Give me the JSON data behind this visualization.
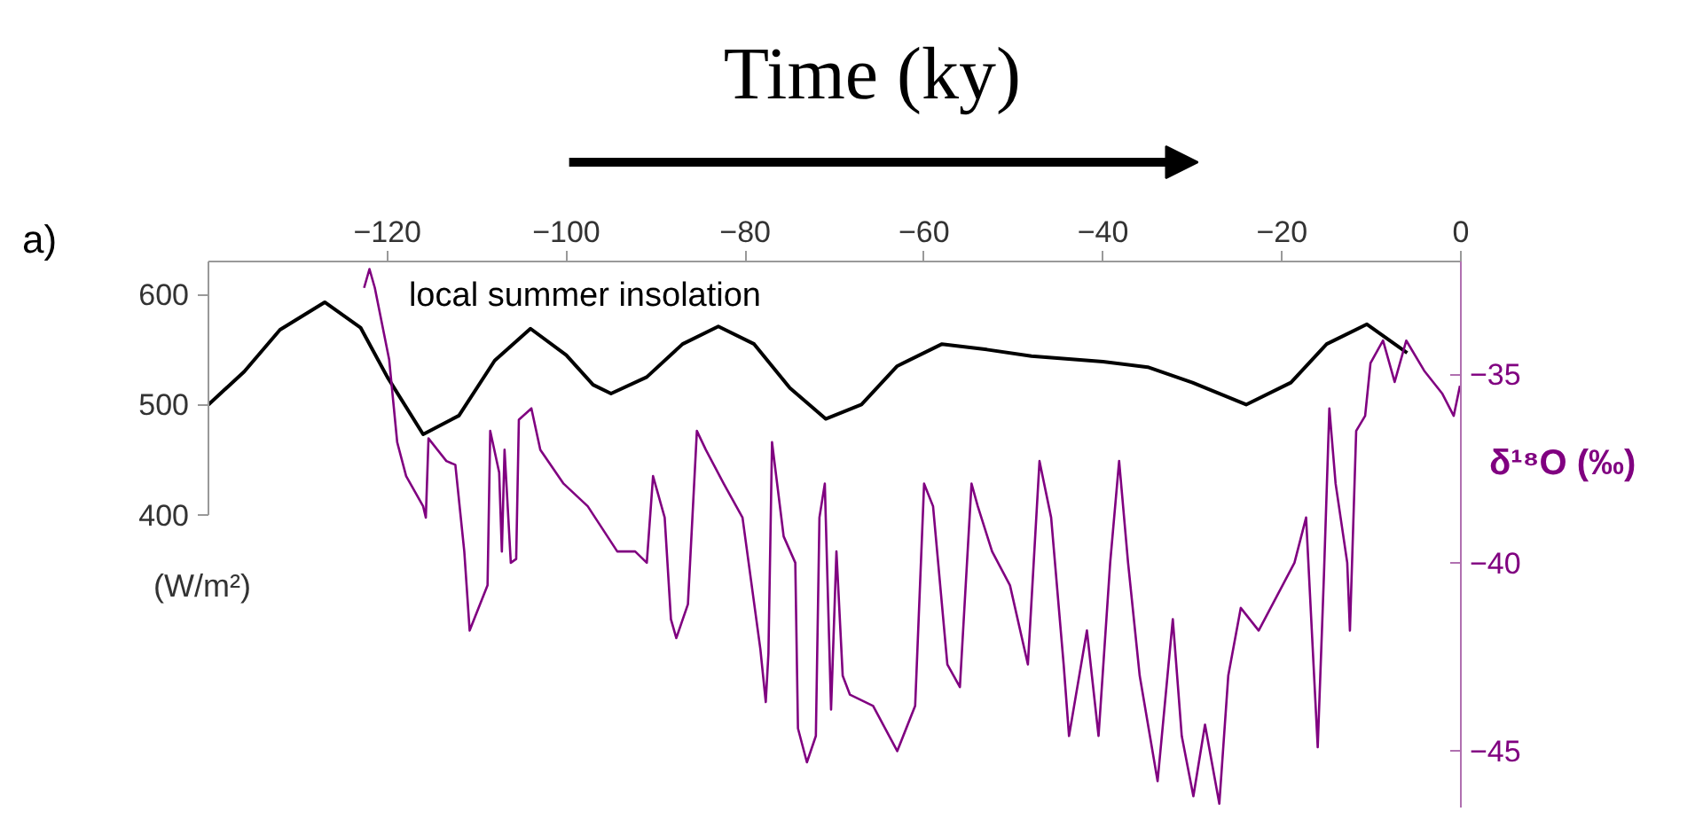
{
  "chart_data": {
    "type": "line",
    "title": "Time (ky)",
    "ylabel": "(W/m²)",
    "y2label": "δ¹⁸O (‰)",
    "annotations": [
      "a)"
    ],
    "xlim": [
      -140,
      0
    ],
    "xticks": [
      -120,
      -100,
      -80,
      -60,
      -40,
      -20,
      0
    ],
    "ylim": [
      134,
      630
    ],
    "yticks": [
      400,
      500,
      600
    ],
    "y2lim": [
      -46.5,
      -32
    ],
    "y2ticks": [
      -35,
      -40,
      -45
    ],
    "legend": false,
    "series": [
      {
        "name": "local summer insolation",
        "color": "#000000",
        "x": [
          -140,
          -136,
          -132,
          -127,
          -123,
          -120,
          -116,
          -112,
          -108,
          -104,
          -100,
          -97,
          -95,
          -91,
          -87,
          -83,
          -79,
          -75,
          -71,
          -67,
          -63,
          -58,
          -53,
          -48,
          -40,
          -35,
          -30,
          -24,
          -19,
          -15,
          -10.5,
          -6
        ],
        "values": [
          500,
          530,
          568,
          593,
          570,
          525,
          473,
          490,
          540,
          569,
          545,
          518,
          510,
          525,
          555,
          571,
          555,
          515,
          487,
          500,
          535,
          555,
          550,
          544,
          539,
          534,
          520,
          500,
          520,
          555,
          573,
          547
        ]
      },
      {
        "color": "#800080",
        "axis": "y2",
        "x": [
          -122.6,
          -122,
          -121.4,
          -119.8,
          -118.9,
          -117.9,
          -116,
          -115.7,
          -115.4,
          -113.4,
          -112.4,
          -111.4,
          -110.8,
          -108.8,
          -108.5,
          -107.5,
          -107.2,
          -106.9,
          -106.2,
          -105.6,
          -105.3,
          -103.9,
          -102.9,
          -100.3,
          -97.6,
          -94.3,
          -92.3,
          -91,
          -90.3,
          -89,
          -88.3,
          -87.7,
          -86.4,
          -85.4,
          -84.4,
          -82.4,
          -80.3,
          -78.3,
          -77.7,
          -77.4,
          -77,
          -75.7,
          -74.4,
          -74.1,
          -73.1,
          -72.1,
          -71.7,
          -71.1,
          -70.4,
          -69.8,
          -69.1,
          -68.3,
          -65.7,
          -63,
          -61,
          -60,
          -59,
          -57.4,
          -56,
          -54.7,
          -54,
          -52.4,
          -50.4,
          -48.4,
          -47.1,
          -45.8,
          -44.4,
          -43.8,
          -41.8,
          -40.5,
          -39.2,
          -38.2,
          -37.2,
          -35.9,
          -33.9,
          -32.2,
          -31.2,
          -29.9,
          -28.6,
          -27,
          -26,
          -24.6,
          -22.6,
          -20.6,
          -18.6,
          -17.3,
          -16,
          -15.3,
          -14.7,
          -14,
          -12.7,
          -12.4,
          -11.7,
          -10.7,
          -10.1,
          -8.7,
          -7.4,
          -6.1,
          -4.1,
          -2.1,
          -0.8,
          -0.1
        ],
        "values": [
          -32.7,
          -32.2,
          -32.7,
          -34.6,
          -36.8,
          -37.7,
          -38.5,
          -38.8,
          -36.7,
          -37.3,
          -37.4,
          -39.7,
          -41.8,
          -40.6,
          -36.5,
          -37.6,
          -39.7,
          -37,
          -40,
          -39.9,
          -36.2,
          -35.9,
          -37,
          -37.9,
          -38.5,
          -39.7,
          -39.7,
          -40,
          -37.7,
          -38.8,
          -41.5,
          -42,
          -41.1,
          -36.5,
          -37,
          -37.9,
          -38.8,
          -42.3,
          -43.7,
          -42.4,
          -36.8,
          -39.3,
          -40,
          -44.4,
          -45.3,
          -44.6,
          -38.8,
          -37.9,
          -43.9,
          -39.7,
          -43,
          -43.5,
          -43.8,
          -45,
          -43.8,
          -37.9,
          -38.5,
          -42.7,
          -43.3,
          -37.9,
          -38.5,
          -39.7,
          -40.6,
          -42.7,
          -37.3,
          -38.8,
          -42.7,
          -44.6,
          -41.8,
          -44.6,
          -40,
          -37.3,
          -40,
          -43,
          -45.8,
          -41.5,
          -44.6,
          -46.2,
          -44.3,
          -46.4,
          -43,
          -41.2,
          -41.8,
          -40.9,
          -40,
          -38.8,
          -44.9,
          -40.3,
          -35.9,
          -37.9,
          -40,
          -41.8,
          -36.5,
          -36.1,
          -34.7,
          -34.1,
          -35.2,
          -34.1,
          -34.9,
          -35.5,
          -36.1,
          -35.3
        ]
      }
    ]
  }
}
